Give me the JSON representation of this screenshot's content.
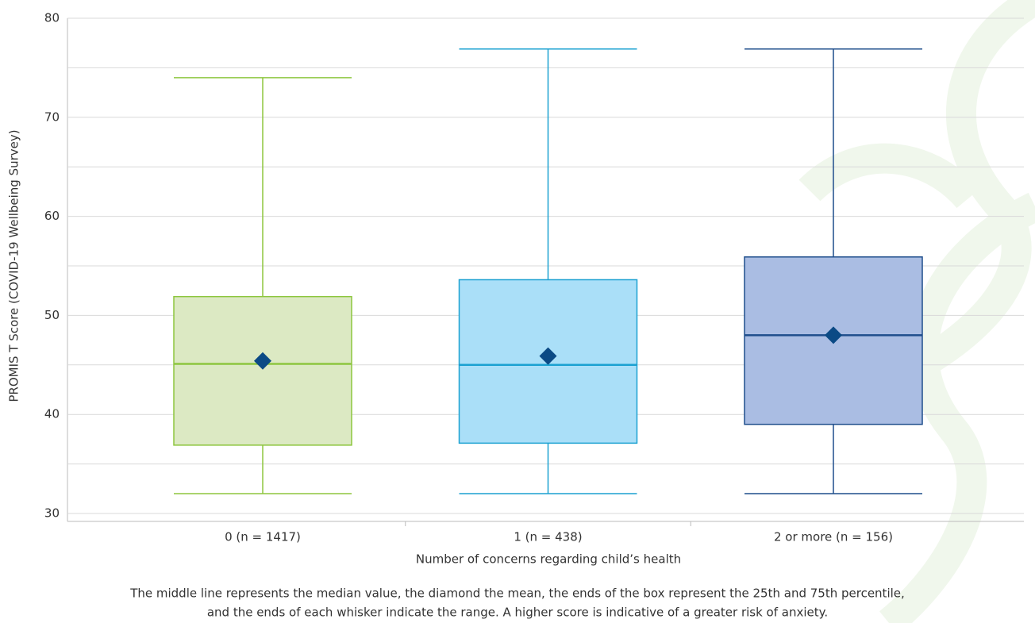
{
  "chart_data": {
    "type": "box",
    "y_label": "PROMIS T Score (COVID-19 Wellbeing Survey)",
    "x_label": "Number of concerns regarding child’s health",
    "caption_lines": [
      "The middle line represents the median value, the diamond the mean, the ends of the box represent the 25th and 75th percentile,",
      "and the ends of each whisker indicate the range. A higher score is indicative of a greater risk of anxiety."
    ],
    "categories": [
      "0 (n = 1417)",
      "1 (n = 438)",
      "2 or more (n = 156)"
    ],
    "boxes": [
      {
        "min": 32,
        "q1": 36.9,
        "median": 45.1,
        "q3": 51.9,
        "max": 74,
        "mean": 45.4,
        "color": "#8dc63f",
        "fill": "#dce9c3"
      },
      {
        "min": 32,
        "q1": 37.1,
        "median": 45,
        "q3": 53.6,
        "max": 76.9,
        "mean": 45.9,
        "color": "#1ba1d1",
        "fill": "#aadff8"
      },
      {
        "min": 32,
        "q1": 39,
        "median": 48,
        "q3": 55.9,
        "max": 76.9,
        "mean": 48,
        "color": "#1f4e8c",
        "fill": "#aabde3"
      }
    ],
    "mean_color": "#0b4a85",
    "ylim": [
      30,
      80
    ],
    "yticks": [
      30,
      40,
      50,
      60,
      70,
      80
    ],
    "minor_yticks": [
      35,
      45,
      55,
      65,
      75
    ],
    "grid": true
  }
}
